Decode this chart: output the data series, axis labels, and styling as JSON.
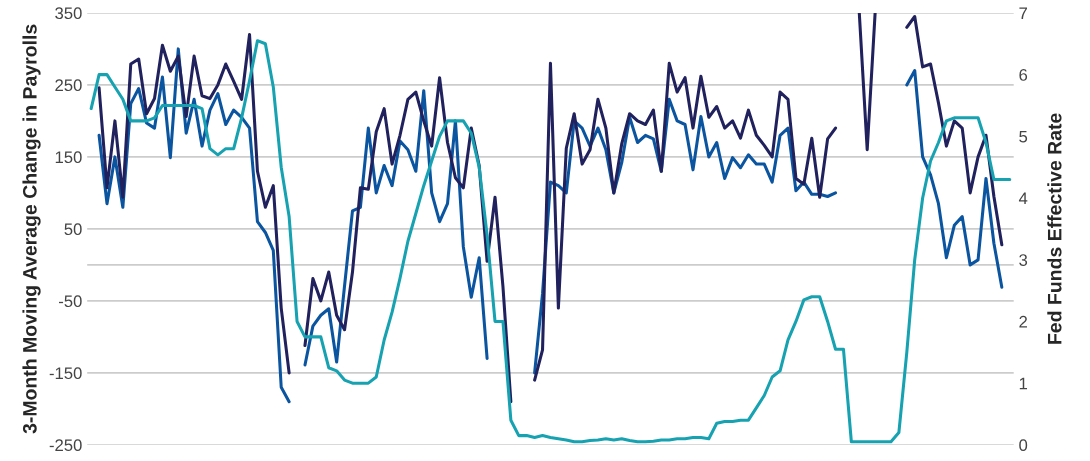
{
  "chart_data": {
    "type": "line",
    "ylabel": "3-Month Moving Average Change in Payrolls",
    "y2label": "Fed Funds Effective Rate",
    "categories": [
      null,
      null,
      null,
      null,
      null,
      null,
      null,
      null,
      null,
      null,
      null,
      null,
      null,
      null,
      null,
      null,
      null,
      null,
      null,
      null,
      null,
      null,
      null,
      null,
      null,
      null,
      null,
      null,
      null,
      null,
      null,
      null,
      null,
      null,
      null,
      null,
      null,
      null,
      null,
      null,
      null,
      null,
      null,
      null,
      null,
      null,
      null,
      null,
      null,
      null,
      null,
      null,
      null,
      null,
      null,
      null,
      null,
      null,
      null,
      null,
      null,
      null,
      null,
      null,
      null,
      null,
      null,
      null,
      null,
      null,
      null,
      null,
      null,
      null,
      null,
      null,
      null,
      null,
      null,
      null,
      null,
      null,
      null,
      null,
      null,
      null,
      null,
      null,
      null,
      null,
      null,
      null,
      null,
      null,
      null,
      null,
      null,
      null,
      null,
      null,
      null,
      null,
      null,
      null,
      null,
      null,
      null,
      null,
      null,
      null,
      null,
      null,
      null,
      null,
      null,
      null,
      null
    ],
    "series": [
      {
        "color": "#17a2b1",
        "axis": "y2",
        "values": [
          5.45,
          6.0,
          6.0,
          5.8,
          5.6,
          5.25,
          5.25,
          5.25,
          5.3,
          5.5,
          5.5,
          5.5,
          5.5,
          5.5,
          5.45,
          4.8,
          4.7,
          4.8,
          4.8,
          5.3,
          5.9,
          6.55,
          6.5,
          5.8,
          4.5,
          3.7,
          2.0,
          1.75,
          1.75,
          1.75,
          1.25,
          1.2,
          1.05,
          1.0,
          1.0,
          1.0,
          1.1,
          1.7,
          2.15,
          2.7,
          3.3,
          3.75,
          4.2,
          4.6,
          5.0,
          5.25,
          5.25,
          5.25,
          5.05,
          4.5,
          3.4,
          2.0,
          2.0,
          0.4,
          0.15,
          0.15,
          0.12,
          0.15,
          0.12,
          0.1,
          0.08,
          0.05,
          0.05,
          0.07,
          0.08,
          0.1,
          0.08,
          0.1,
          0.07,
          0.05,
          0.05,
          0.06,
          0.08,
          0.08,
          0.1,
          0.1,
          0.12,
          0.12,
          0.1,
          0.35,
          0.38,
          0.38,
          0.4,
          0.4,
          0.6,
          0.8,
          1.1,
          1.2,
          1.7,
          2.0,
          2.35,
          2.4,
          2.4,
          2.0,
          1.55,
          1.55,
          0.05,
          0.05,
          0.05,
          0.05,
          0.05,
          0.05,
          0.2,
          1.5,
          3.0,
          4.0,
          4.6,
          4.9,
          5.25,
          5.3,
          5.3,
          5.3,
          5.3,
          4.9,
          4.3,
          4.3,
          4.3
        ]
      },
      {
        "color": "#0b55a0",
        "values": [
          null,
          180,
          85,
          150,
          80,
          224,
          245,
          197,
          190,
          261,
          149,
          300,
          183,
          230,
          165,
          215,
          238,
          195,
          215,
          205,
          190,
          60,
          45,
          20,
          -170,
          -190,
          null,
          -139,
          -85,
          -70,
          -61,
          -135,
          -29,
          75,
          80,
          190,
          100,
          138,
          110,
          172,
          160,
          130,
          242,
          100,
          60,
          85,
          200,
          25,
          -45,
          10,
          -130,
          null,
          null,
          null,
          null,
          null,
          -150,
          -40,
          115,
          110,
          100,
          200,
          190,
          165,
          190,
          160,
          100,
          142,
          205,
          170,
          180,
          175,
          130,
          230,
          200,
          195,
          132,
          206,
          150,
          170,
          120,
          149,
          135,
          153,
          140,
          140,
          115,
          180,
          190,
          103,
          115,
          98,
          98,
          95,
          100,
          null,
          null,
          null,
          null,
          null,
          null,
          null,
          null,
          250,
          270,
          150,
          125,
          85,
          10,
          55,
          67,
          0,
          7,
          120,
          30,
          -31,
          null
        ]
      },
      {
        "color": "#21215e",
        "values": [
          null,
          246,
          107,
          200,
          94,
          279,
          286,
          210,
          231,
          305,
          269,
          290,
          206,
          290,
          235,
          231,
          250,
          279,
          255,
          230,
          320,
          130,
          80,
          110,
          -60,
          -150,
          null,
          -112,
          -19,
          -50,
          -10,
          -70,
          -90,
          -10,
          107,
          105,
          185,
          217,
          140,
          180,
          230,
          240,
          200,
          165,
          260,
          170,
          121,
          107,
          190,
          138,
          5,
          94,
          -30,
          -190,
          null,
          null,
          -160,
          -118,
          280,
          -60,
          162,
          210,
          140,
          160,
          230,
          190,
          100,
          168,
          210,
          200,
          195,
          215,
          130,
          280,
          240,
          260,
          190,
          262,
          205,
          220,
          190,
          200,
          176,
          215,
          180,
          166,
          150,
          240,
          230,
          120,
          112,
          176,
          94,
          175,
          190,
          null,
          null,
          350,
          160,
          350,
          null,
          null,
          null,
          330,
          345,
          275,
          279,
          225,
          165,
          200,
          190,
          100,
          150,
          180,
          95,
          28,
          null
        ]
      }
    ],
    "ylim": [
      -250,
      350
    ],
    "yticks": [
      -250,
      -150,
      -50,
      {
        "value": 0,
        "label": null
      },
      50,
      150,
      250,
      350
    ],
    "y2lim": [
      0,
      7
    ],
    "y2ticks": [
      0,
      1,
      2,
      3,
      4,
      5,
      6,
      7
    ],
    "grid": "y",
    "legend": false,
    "tick_labels": "y",
    "line_style": "solid",
    "marker": "none"
  }
}
